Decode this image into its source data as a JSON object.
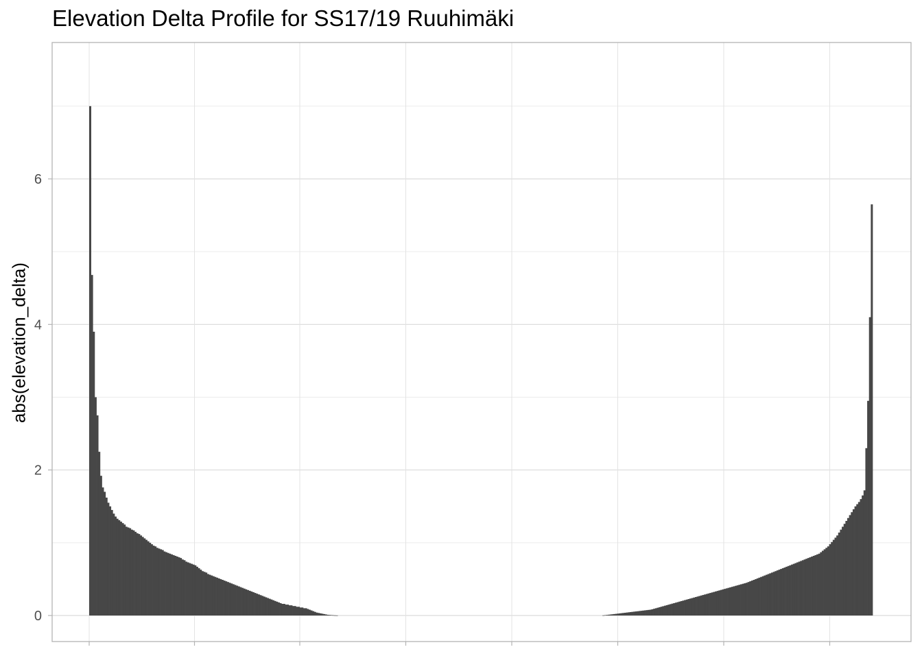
{
  "chart_data": {
    "type": "bar",
    "title": "Elevation Delta Profile for SS17/19 Ruuhimäki",
    "xlabel": "",
    "ylabel": "abs(elevation_delta)",
    "ylim": [
      -0.35,
      7.9
    ],
    "yticks": [
      0,
      2,
      4,
      6
    ],
    "grid": true,
    "n_bars": 400,
    "bar_color": "#474747",
    "values": [
      7.0,
      4.68,
      3.9,
      3.0,
      2.75,
      2.25,
      1.92,
      1.76,
      1.7,
      1.62,
      1.55,
      1.5,
      1.45,
      1.4,
      1.36,
      1.33,
      1.31,
      1.29,
      1.27,
      1.25,
      1.22,
      1.21,
      1.2,
      1.18,
      1.17,
      1.15,
      1.13,
      1.12,
      1.1,
      1.08,
      1.06,
      1.04,
      1.02,
      1.0,
      0.98,
      0.96,
      0.95,
      0.93,
      0.92,
      0.91,
      0.9,
      0.88,
      0.87,
      0.86,
      0.85,
      0.84,
      0.83,
      0.82,
      0.81,
      0.8,
      0.79,
      0.77,
      0.76,
      0.74,
      0.73,
      0.72,
      0.71,
      0.7,
      0.69,
      0.67,
      0.65,
      0.63,
      0.61,
      0.6,
      0.59,
      0.57,
      0.56,
      0.55,
      0.54,
      0.53,
      0.52,
      0.51,
      0.5,
      0.49,
      0.48,
      0.47,
      0.46,
      0.45,
      0.44,
      0.43,
      0.42,
      0.41,
      0.4,
      0.39,
      0.38,
      0.37,
      0.36,
      0.35,
      0.34,
      0.33,
      0.32,
      0.31,
      0.3,
      0.29,
      0.28,
      0.27,
      0.26,
      0.25,
      0.24,
      0.23,
      0.22,
      0.21,
      0.2,
      0.19,
      0.18,
      0.17,
      0.16,
      0.16,
      0.15,
      0.15,
      0.14,
      0.14,
      0.13,
      0.13,
      0.12,
      0.12,
      0.11,
      0.11,
      0.1,
      0.1,
      0.09,
      0.08,
      0.07,
      0.06,
      0.05,
      0.04,
      0.035,
      0.03,
      0.025,
      0.02,
      0.015,
      0.01,
      0.008,
      0.006,
      0.004,
      0.002,
      0.001,
      0,
      0,
      0,
      0,
      0,
      0,
      0,
      0,
      0,
      0,
      0,
      0,
      0,
      0,
      0,
      0,
      0,
      0,
      0,
      0,
      0,
      0,
      0,
      0,
      0,
      0,
      0,
      0,
      0,
      0,
      0,
      0,
      0,
      0,
      0,
      0,
      0,
      0,
      0,
      0,
      0,
      0,
      0,
      0,
      0,
      0,
      0,
      0,
      0,
      0,
      0,
      0,
      0,
      0,
      0,
      0,
      0,
      0,
      0,
      0,
      0,
      0,
      0,
      0,
      0,
      0,
      0,
      0,
      0,
      0,
      0,
      0,
      0,
      0,
      0,
      0,
      0,
      0,
      0,
      0,
      0,
      0,
      0,
      0,
      0,
      0,
      0,
      0,
      0,
      0,
      0,
      0,
      0,
      0,
      0,
      0,
      0,
      0,
      0,
      0,
      0,
      0,
      0,
      0,
      0,
      0,
      0,
      0,
      0,
      0,
      0,
      0,
      0,
      0,
      0,
      0,
      0,
      0,
      0,
      0,
      0,
      0,
      0,
      0,
      0,
      0,
      0,
      0,
      0,
      0,
      0,
      0,
      0,
      0,
      0,
      0,
      0,
      0,
      0,
      0,
      0,
      0,
      0,
      0,
      0,
      0,
      0.002,
      0.005,
      0.008,
      0.011,
      0.014,
      0.017,
      0.02,
      0.023,
      0.026,
      0.029,
      0.032,
      0.035,
      0.038,
      0.041,
      0.044,
      0.047,
      0.05,
      0.053,
      0.056,
      0.059,
      0.062,
      0.065,
      0.068,
      0.071,
      0.074,
      0.077,
      0.08,
      0.086,
      0.093,
      0.1,
      0.107,
      0.114,
      0.121,
      0.128,
      0.135,
      0.142,
      0.149,
      0.156,
      0.163,
      0.17,
      0.177,
      0.184,
      0.191,
      0.198,
      0.205,
      0.212,
      0.219,
      0.226,
      0.233,
      0.24,
      0.247,
      0.254,
      0.261,
      0.268,
      0.275,
      0.282,
      0.289,
      0.296,
      0.303,
      0.31,
      0.317,
      0.324,
      0.331,
      0.338,
      0.345,
      0.352,
      0.359,
      0.366,
      0.373,
      0.38,
      0.387,
      0.394,
      0.401,
      0.408,
      0.415,
      0.422,
      0.429,
      0.436,
      0.443,
      0.45,
      0.46,
      0.47,
      0.48,
      0.49,
      0.5,
      0.51,
      0.52,
      0.53,
      0.54,
      0.55,
      0.56,
      0.57,
      0.58,
      0.59,
      0.6,
      0.61,
      0.62,
      0.63,
      0.64,
      0.65,
      0.66,
      0.67,
      0.68,
      0.69,
      0.7,
      0.71,
      0.72,
      0.73,
      0.74,
      0.75,
      0.76,
      0.77,
      0.78,
      0.79,
      0.8,
      0.81,
      0.82,
      0.83,
      0.84,
      0.85,
      0.87,
      0.89,
      0.91,
      0.93,
      0.95,
      0.98,
      1.01,
      1.04,
      1.07,
      1.1,
      1.14,
      1.18,
      1.22,
      1.26,
      1.3,
      1.34,
      1.38,
      1.42,
      1.46,
      1.5,
      1.53,
      1.56,
      1.6,
      1.65,
      1.72,
      2.3,
      2.95,
      4.1,
      5.65
    ]
  }
}
